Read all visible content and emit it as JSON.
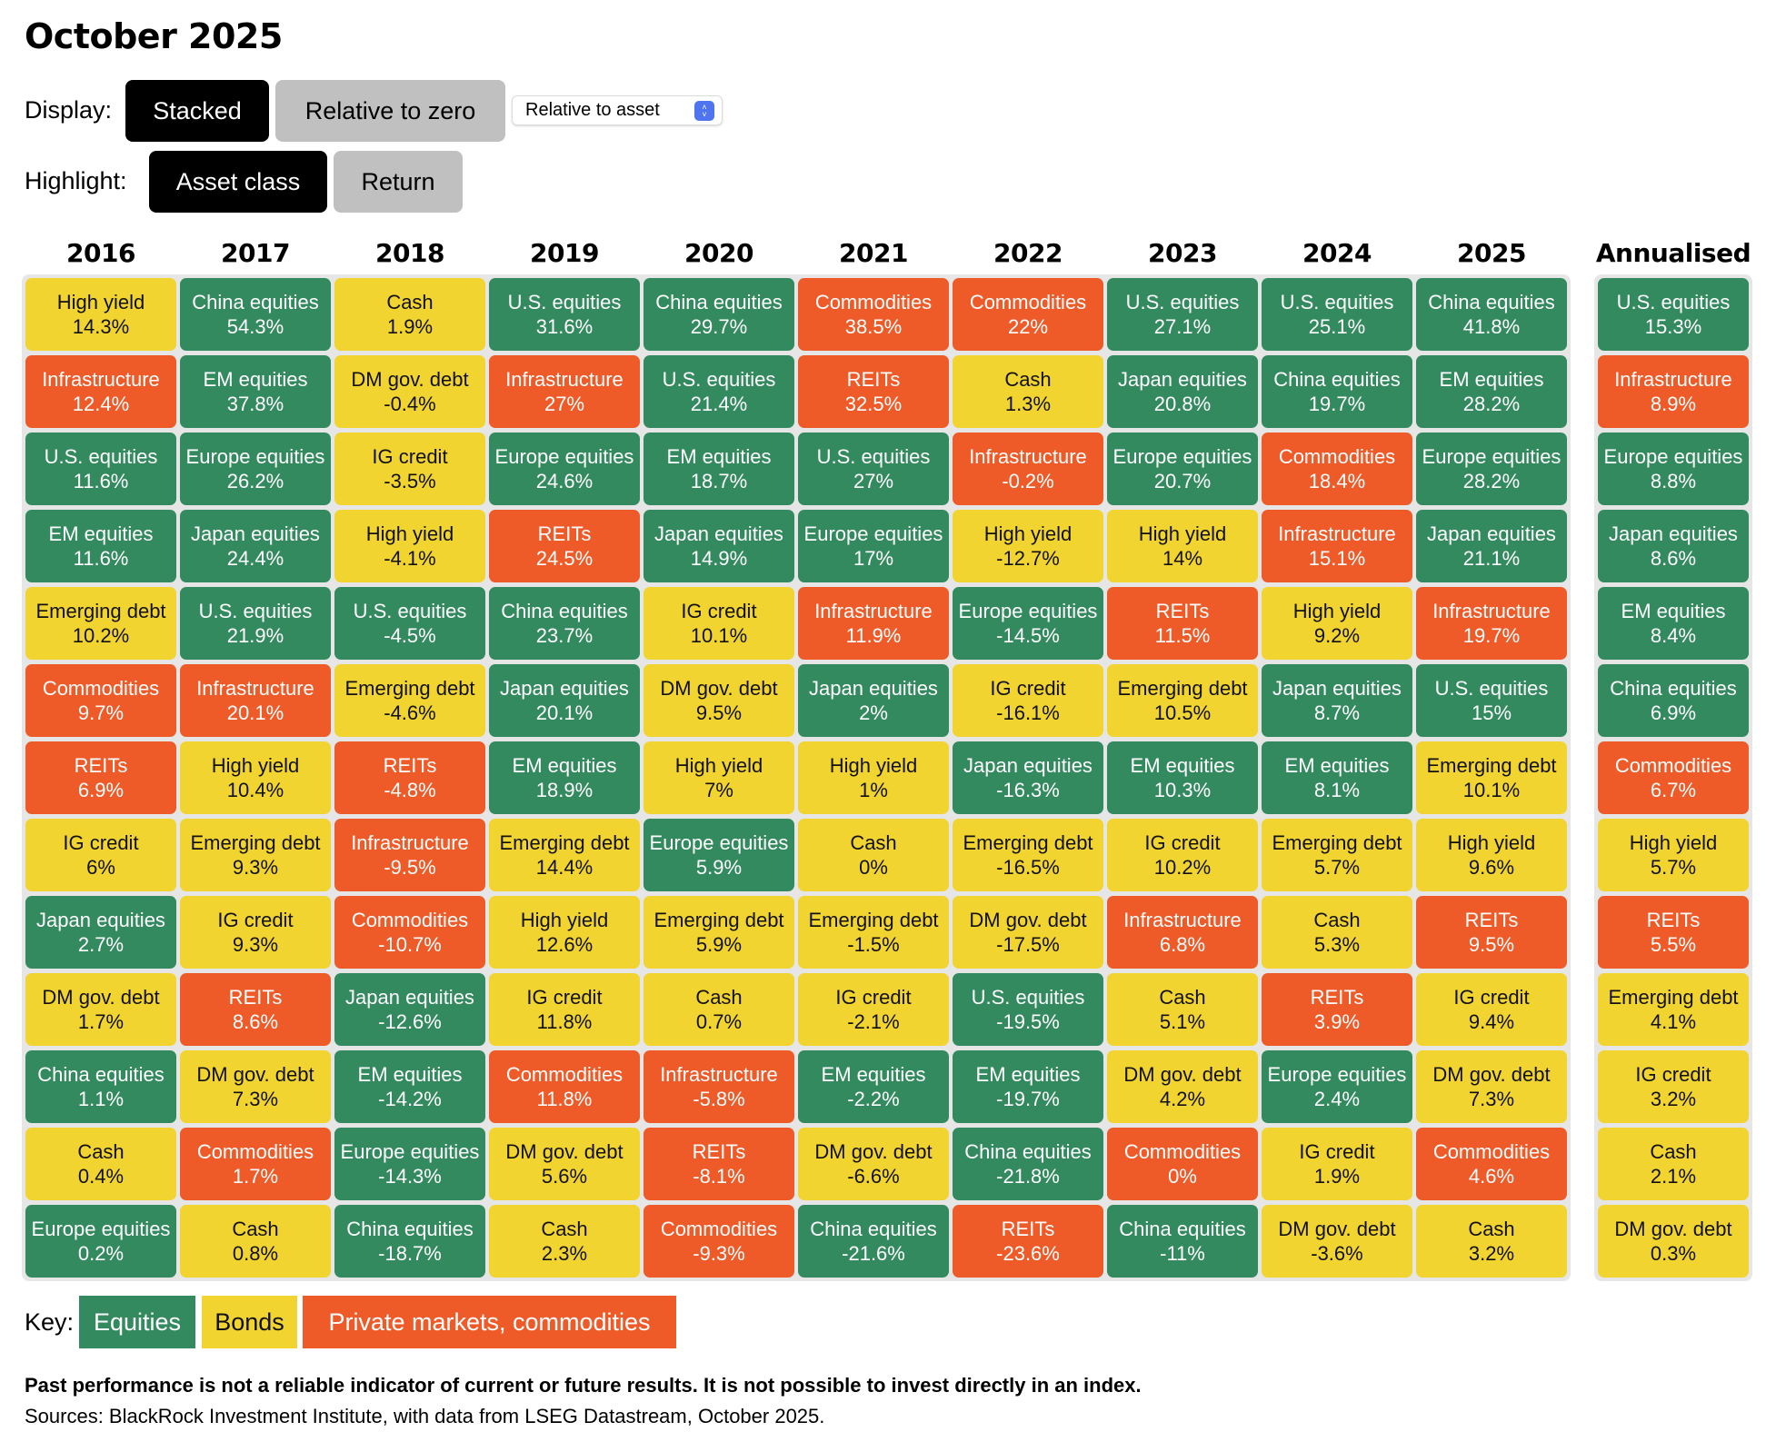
{
  "title": "October 2025",
  "controls": {
    "display_label": "Display:",
    "display_options": [
      {
        "label": "Stacked",
        "active": true
      },
      {
        "label": "Relative to zero",
        "active": false
      }
    ],
    "display_select": {
      "value": "Relative to asset",
      "icon": "updown-chevron-icon"
    },
    "highlight_label": "Highlight:",
    "highlight_options": [
      {
        "label": "Asset class",
        "active": true
      },
      {
        "label": "Return",
        "active": false
      }
    ]
  },
  "colors": {
    "equities": "#338a5f",
    "bonds": "#f2d431",
    "private": "#ee5a28",
    "grid_background": "#e6e6e6"
  },
  "chart_data": {
    "type": "table",
    "title": "October 2025",
    "columns": [
      "2016",
      "2017",
      "2018",
      "2019",
      "2020",
      "2021",
      "2022",
      "2023",
      "2024",
      "2025",
      "Annualised"
    ],
    "unit": "%",
    "ranking": [
      {
        "year": "2016",
        "cells": [
          {
            "asset": "High yield",
            "value": "14.3%",
            "class": "bonds"
          },
          {
            "asset": "Infrastructure",
            "value": "12.4%",
            "class": "private"
          },
          {
            "asset": "U.S. equities",
            "value": "11.6%",
            "class": "equities"
          },
          {
            "asset": "EM equities",
            "value": "11.6%",
            "class": "equities"
          },
          {
            "asset": "Emerging debt",
            "value": "10.2%",
            "class": "bonds"
          },
          {
            "asset": "Commodities",
            "value": "9.7%",
            "class": "private"
          },
          {
            "asset": "REITs",
            "value": "6.9%",
            "class": "private"
          },
          {
            "asset": "IG credit",
            "value": "6%",
            "class": "bonds"
          },
          {
            "asset": "Japan equities",
            "value": "2.7%",
            "class": "equities"
          },
          {
            "asset": "DM gov. debt",
            "value": "1.7%",
            "class": "bonds"
          },
          {
            "asset": "China equities",
            "value": "1.1%",
            "class": "equities"
          },
          {
            "asset": "Cash",
            "value": "0.4%",
            "class": "bonds"
          },
          {
            "asset": "Europe equities",
            "value": "0.2%",
            "class": "equities"
          }
        ]
      },
      {
        "year": "2017",
        "cells": [
          {
            "asset": "China equities",
            "value": "54.3%",
            "class": "equities"
          },
          {
            "asset": "EM equities",
            "value": "37.8%",
            "class": "equities"
          },
          {
            "asset": "Europe equities",
            "value": "26.2%",
            "class": "equities"
          },
          {
            "asset": "Japan equities",
            "value": "24.4%",
            "class": "equities"
          },
          {
            "asset": "U.S. equities",
            "value": "21.9%",
            "class": "equities"
          },
          {
            "asset": "Infrastructure",
            "value": "20.1%",
            "class": "private"
          },
          {
            "asset": "High yield",
            "value": "10.4%",
            "class": "bonds"
          },
          {
            "asset": "Emerging debt",
            "value": "9.3%",
            "class": "bonds"
          },
          {
            "asset": "IG credit",
            "value": "9.3%",
            "class": "bonds"
          },
          {
            "asset": "REITs",
            "value": "8.6%",
            "class": "private"
          },
          {
            "asset": "DM gov. debt",
            "value": "7.3%",
            "class": "bonds"
          },
          {
            "asset": "Commodities",
            "value": "1.7%",
            "class": "private"
          },
          {
            "asset": "Cash",
            "value": "0.8%",
            "class": "bonds"
          }
        ]
      },
      {
        "year": "2018",
        "cells": [
          {
            "asset": "Cash",
            "value": "1.9%",
            "class": "bonds"
          },
          {
            "asset": "DM gov. debt",
            "value": "-0.4%",
            "class": "bonds"
          },
          {
            "asset": "IG credit",
            "value": "-3.5%",
            "class": "bonds"
          },
          {
            "asset": "High yield",
            "value": "-4.1%",
            "class": "bonds"
          },
          {
            "asset": "U.S. equities",
            "value": "-4.5%",
            "class": "equities"
          },
          {
            "asset": "Emerging debt",
            "value": "-4.6%",
            "class": "bonds"
          },
          {
            "asset": "REITs",
            "value": "-4.8%",
            "class": "private"
          },
          {
            "asset": "Infrastructure",
            "value": "-9.5%",
            "class": "private"
          },
          {
            "asset": "Commodities",
            "value": "-10.7%",
            "class": "private"
          },
          {
            "asset": "Japan equities",
            "value": "-12.6%",
            "class": "equities"
          },
          {
            "asset": "EM equities",
            "value": "-14.2%",
            "class": "equities"
          },
          {
            "asset": "Europe equities",
            "value": "-14.3%",
            "class": "equities"
          },
          {
            "asset": "China equities",
            "value": "-18.7%",
            "class": "equities"
          }
        ]
      },
      {
        "year": "2019",
        "cells": [
          {
            "asset": "U.S. equities",
            "value": "31.6%",
            "class": "equities"
          },
          {
            "asset": "Infrastructure",
            "value": "27%",
            "class": "private"
          },
          {
            "asset": "Europe equities",
            "value": "24.6%",
            "class": "equities"
          },
          {
            "asset": "REITs",
            "value": "24.5%",
            "class": "private"
          },
          {
            "asset": "China equities",
            "value": "23.7%",
            "class": "equities"
          },
          {
            "asset": "Japan equities",
            "value": "20.1%",
            "class": "equities"
          },
          {
            "asset": "EM equities",
            "value": "18.9%",
            "class": "equities"
          },
          {
            "asset": "Emerging debt",
            "value": "14.4%",
            "class": "bonds"
          },
          {
            "asset": "High yield",
            "value": "12.6%",
            "class": "bonds"
          },
          {
            "asset": "IG credit",
            "value": "11.8%",
            "class": "bonds"
          },
          {
            "asset": "Commodities",
            "value": "11.8%",
            "class": "private"
          },
          {
            "asset": "DM gov. debt",
            "value": "5.6%",
            "class": "bonds"
          },
          {
            "asset": "Cash",
            "value": "2.3%",
            "class": "bonds"
          }
        ]
      },
      {
        "year": "2020",
        "cells": [
          {
            "asset": "China equities",
            "value": "29.7%",
            "class": "equities"
          },
          {
            "asset": "U.S. equities",
            "value": "21.4%",
            "class": "equities"
          },
          {
            "asset": "EM equities",
            "value": "18.7%",
            "class": "equities"
          },
          {
            "asset": "Japan equities",
            "value": "14.9%",
            "class": "equities"
          },
          {
            "asset": "IG credit",
            "value": "10.1%",
            "class": "bonds"
          },
          {
            "asset": "DM gov. debt",
            "value": "9.5%",
            "class": "bonds"
          },
          {
            "asset": "High yield",
            "value": "7%",
            "class": "bonds"
          },
          {
            "asset": "Europe equities",
            "value": "5.9%",
            "class": "equities"
          },
          {
            "asset": "Emerging debt",
            "value": "5.9%",
            "class": "bonds"
          },
          {
            "asset": "Cash",
            "value": "0.7%",
            "class": "bonds"
          },
          {
            "asset": "Infrastructure",
            "value": "-5.8%",
            "class": "private"
          },
          {
            "asset": "REITs",
            "value": "-8.1%",
            "class": "private"
          },
          {
            "asset": "Commodities",
            "value": "-9.3%",
            "class": "private"
          }
        ]
      },
      {
        "year": "2021",
        "cells": [
          {
            "asset": "Commodities",
            "value": "38.5%",
            "class": "private"
          },
          {
            "asset": "REITs",
            "value": "32.5%",
            "class": "private"
          },
          {
            "asset": "U.S. equities",
            "value": "27%",
            "class": "equities"
          },
          {
            "asset": "Europe equities",
            "value": "17%",
            "class": "equities"
          },
          {
            "asset": "Infrastructure",
            "value": "11.9%",
            "class": "private"
          },
          {
            "asset": "Japan equities",
            "value": "2%",
            "class": "equities"
          },
          {
            "asset": "High yield",
            "value": "1%",
            "class": "bonds"
          },
          {
            "asset": "Cash",
            "value": "0%",
            "class": "bonds"
          },
          {
            "asset": "Emerging debt",
            "value": "-1.5%",
            "class": "bonds"
          },
          {
            "asset": "IG credit",
            "value": "-2.1%",
            "class": "bonds"
          },
          {
            "asset": "EM equities",
            "value": "-2.2%",
            "class": "equities"
          },
          {
            "asset": "DM gov. debt",
            "value": "-6.6%",
            "class": "bonds"
          },
          {
            "asset": "China equities",
            "value": "-21.6%",
            "class": "equities"
          }
        ]
      },
      {
        "year": "2022",
        "cells": [
          {
            "asset": "Commodities",
            "value": "22%",
            "class": "private"
          },
          {
            "asset": "Cash",
            "value": "1.3%",
            "class": "bonds"
          },
          {
            "asset": "Infrastructure",
            "value": "-0.2%",
            "class": "private"
          },
          {
            "asset": "High yield",
            "value": "-12.7%",
            "class": "bonds"
          },
          {
            "asset": "Europe equities",
            "value": "-14.5%",
            "class": "equities"
          },
          {
            "asset": "IG credit",
            "value": "-16.1%",
            "class": "bonds"
          },
          {
            "asset": "Japan equities",
            "value": "-16.3%",
            "class": "equities"
          },
          {
            "asset": "Emerging debt",
            "value": "-16.5%",
            "class": "bonds"
          },
          {
            "asset": "DM gov. debt",
            "value": "-17.5%",
            "class": "bonds"
          },
          {
            "asset": "U.S. equities",
            "value": "-19.5%",
            "class": "equities"
          },
          {
            "asset": "EM equities",
            "value": "-19.7%",
            "class": "equities"
          },
          {
            "asset": "China equities",
            "value": "-21.8%",
            "class": "equities"
          },
          {
            "asset": "REITs",
            "value": "-23.6%",
            "class": "private"
          }
        ]
      },
      {
        "year": "2023",
        "cells": [
          {
            "asset": "U.S. equities",
            "value": "27.1%",
            "class": "equities"
          },
          {
            "asset": "Japan equities",
            "value": "20.8%",
            "class": "equities"
          },
          {
            "asset": "Europe equities",
            "value": "20.7%",
            "class": "equities"
          },
          {
            "asset": "High yield",
            "value": "14%",
            "class": "bonds"
          },
          {
            "asset": "REITs",
            "value": "11.5%",
            "class": "private"
          },
          {
            "asset": "Emerging debt",
            "value": "10.5%",
            "class": "bonds"
          },
          {
            "asset": "EM equities",
            "value": "10.3%",
            "class": "equities"
          },
          {
            "asset": "IG credit",
            "value": "10.2%",
            "class": "bonds"
          },
          {
            "asset": "Infrastructure",
            "value": "6.8%",
            "class": "private"
          },
          {
            "asset": "Cash",
            "value": "5.1%",
            "class": "bonds"
          },
          {
            "asset": "DM gov. debt",
            "value": "4.2%",
            "class": "bonds"
          },
          {
            "asset": "Commodities",
            "value": "0%",
            "class": "private"
          },
          {
            "asset": "China equities",
            "value": "-11%",
            "class": "equities"
          }
        ]
      },
      {
        "year": "2024",
        "cells": [
          {
            "asset": "U.S. equities",
            "value": "25.1%",
            "class": "equities"
          },
          {
            "asset": "China equities",
            "value": "19.7%",
            "class": "equities"
          },
          {
            "asset": "Commodities",
            "value": "18.4%",
            "class": "private"
          },
          {
            "asset": "Infrastructure",
            "value": "15.1%",
            "class": "private"
          },
          {
            "asset": "High yield",
            "value": "9.2%",
            "class": "bonds"
          },
          {
            "asset": "Japan equities",
            "value": "8.7%",
            "class": "equities"
          },
          {
            "asset": "EM equities",
            "value": "8.1%",
            "class": "equities"
          },
          {
            "asset": "Emerging debt",
            "value": "5.7%",
            "class": "bonds"
          },
          {
            "asset": "Cash",
            "value": "5.3%",
            "class": "bonds"
          },
          {
            "asset": "REITs",
            "value": "3.9%",
            "class": "private"
          },
          {
            "asset": "Europe equities",
            "value": "2.4%",
            "class": "equities"
          },
          {
            "asset": "IG credit",
            "value": "1.9%",
            "class": "bonds"
          },
          {
            "asset": "DM gov. debt",
            "value": "-3.6%",
            "class": "bonds"
          }
        ]
      },
      {
        "year": "2025",
        "cells": [
          {
            "asset": "China equities",
            "value": "41.8%",
            "class": "equities"
          },
          {
            "asset": "EM equities",
            "value": "28.2%",
            "class": "equities"
          },
          {
            "asset": "Europe equities",
            "value": "28.2%",
            "class": "equities"
          },
          {
            "asset": "Japan equities",
            "value": "21.1%",
            "class": "equities"
          },
          {
            "asset": "Infrastructure",
            "value": "19.7%",
            "class": "private"
          },
          {
            "asset": "U.S. equities",
            "value": "15%",
            "class": "equities"
          },
          {
            "asset": "Emerging debt",
            "value": "10.1%",
            "class": "bonds"
          },
          {
            "asset": "High yield",
            "value": "9.6%",
            "class": "bonds"
          },
          {
            "asset": "REITs",
            "value": "9.5%",
            "class": "private"
          },
          {
            "asset": "IG credit",
            "value": "9.4%",
            "class": "bonds"
          },
          {
            "asset": "DM gov. debt",
            "value": "7.3%",
            "class": "bonds"
          },
          {
            "asset": "Commodities",
            "value": "4.6%",
            "class": "private"
          },
          {
            "asset": "Cash",
            "value": "3.2%",
            "class": "bonds"
          }
        ]
      },
      {
        "year": "Annualised",
        "cells": [
          {
            "asset": "U.S. equities",
            "value": "15.3%",
            "class": "equities"
          },
          {
            "asset": "Infrastructure",
            "value": "8.9%",
            "class": "private"
          },
          {
            "asset": "Europe equities",
            "value": "8.8%",
            "class": "equities"
          },
          {
            "asset": "Japan equities",
            "value": "8.6%",
            "class": "equities"
          },
          {
            "asset": "EM equities",
            "value": "8.4%",
            "class": "equities"
          },
          {
            "asset": "China equities",
            "value": "6.9%",
            "class": "equities"
          },
          {
            "asset": "Commodities",
            "value": "6.7%",
            "class": "private"
          },
          {
            "asset": "High yield",
            "value": "5.7%",
            "class": "bonds"
          },
          {
            "asset": "REITs",
            "value": "5.5%",
            "class": "private"
          },
          {
            "asset": "Emerging debt",
            "value": "4.1%",
            "class": "bonds"
          },
          {
            "asset": "IG credit",
            "value": "3.2%",
            "class": "bonds"
          },
          {
            "asset": "Cash",
            "value": "2.1%",
            "class": "bonds"
          },
          {
            "asset": "DM gov. debt",
            "value": "0.3%",
            "class": "bonds"
          }
        ]
      }
    ],
    "legend": {
      "label": "Key:",
      "entries": [
        {
          "label": "Equities",
          "class": "equities"
        },
        {
          "label": "Bonds",
          "class": "bonds"
        },
        {
          "label": "Private markets, commodities",
          "class": "private"
        }
      ],
      "placement": "bottom-left"
    }
  },
  "footer": {
    "disclaimer": "Past performance is not a reliable indicator of current or future results. It is not possible to invest directly in an index.",
    "sources": "Sources: BlackRock Investment Institute, with data from LSEG Datastream, October 2025."
  }
}
